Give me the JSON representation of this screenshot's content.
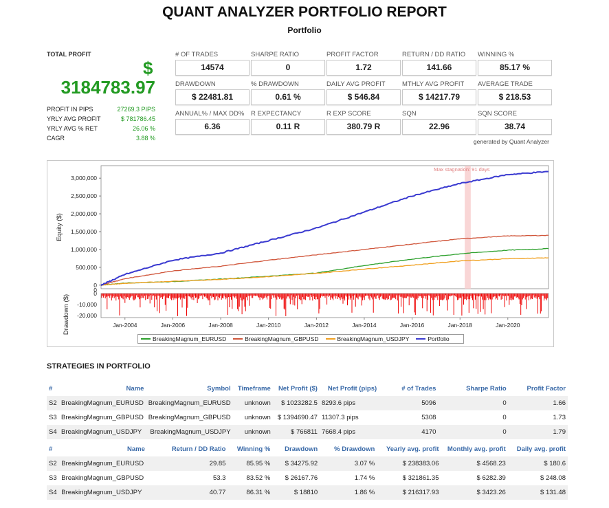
{
  "header": {
    "title": "QUANT ANALYZER PORTFOLIO REPORT",
    "subtitle": "Portfolio"
  },
  "summary": {
    "total_profit_label": "TOTAL PROFIT",
    "currency_symbol": "$",
    "total_profit_value": "3184783.97",
    "stats": [
      {
        "label": "PROFIT IN PIPS",
        "value": "27269.3 PIPS"
      },
      {
        "label": "YRLY AVG PROFIT",
        "value": "$ 781786.45"
      },
      {
        "label": "YRLY AVG % RET",
        "value": "26.06 %"
      },
      {
        "label": "CAGR",
        "value": "3.88 %"
      }
    ]
  },
  "metrics": [
    {
      "label": "# OF TRADES",
      "value": "14574"
    },
    {
      "label": "SHARPE RATIO",
      "value": "0"
    },
    {
      "label": "PROFIT FACTOR",
      "value": "1.72"
    },
    {
      "label": "RETURN / DD RATIO",
      "value": "141.66"
    },
    {
      "label": "WINNING %",
      "value": "85.17 %"
    },
    {
      "label": "DRAWDOWN",
      "value": "$ 22481.81"
    },
    {
      "label": "% DRAWDOWN",
      "value": "0.61 %"
    },
    {
      "label": "DAILY AVG PROFIT",
      "value": "$ 546.84"
    },
    {
      "label": "MTHLY AVG PROFIT",
      "value": "$ 14217.79"
    },
    {
      "label": "AVERAGE TRADE",
      "value": "$ 218.53"
    },
    {
      "label": "ANNUAL% / MAX DD%",
      "value": "6.36"
    },
    {
      "label": "R EXPECTANCY",
      "value": "0.11 R"
    },
    {
      "label": "R EXP SCORE",
      "value": "380.79 R"
    },
    {
      "label": "SQN",
      "value": "22.96"
    },
    {
      "label": "SQN SCORE",
      "value": "38.74"
    }
  ],
  "generated_by": "generated by Quant Analyzer",
  "chart_data": {
    "type": "line",
    "x_ticks": [
      "Jan-2004",
      "Jan-2006",
      "Jan-2008",
      "Jan-2010",
      "Jan-2012",
      "Jan-2014",
      "Jan-2016",
      "Jan-2018",
      "Jan-2020"
    ],
    "x_range": [
      2003.0,
      2021.7
    ],
    "ylabel": "Equity ($)",
    "y_ticks": [
      "3,000,000",
      "2,500,000",
      "2,000,000",
      "1,500,000",
      "1,000,000",
      "500,000",
      "0"
    ],
    "y_tick_values": [
      3000000,
      2500000,
      2000000,
      1500000,
      1000000,
      500000,
      0
    ],
    "ylim": [
      -100000,
      3350000
    ],
    "annotation": "Max stagnation: 91 days",
    "stagnation_band": [
      2018.2,
      2018.45
    ],
    "series": [
      {
        "name": "BreakingMagnum_EURUSD",
        "color": "#2ca02c",
        "x": [
          2003.0,
          2004,
          2006,
          2008,
          2010,
          2012,
          2014,
          2016,
          2018,
          2020,
          2021.7
        ],
        "y": [
          0,
          60000,
          100000,
          170000,
          250000,
          340000,
          550000,
          730000,
          880000,
          980000,
          1023000
        ]
      },
      {
        "name": "BreakingMagnum_GBPUSD",
        "color": "#d0553a",
        "x": [
          2003.0,
          2004,
          2006,
          2008,
          2010,
          2012,
          2014,
          2016,
          2018,
          2020,
          2021.7
        ],
        "y": [
          0,
          180000,
          400000,
          530000,
          700000,
          850000,
          1000000,
          1150000,
          1300000,
          1380000,
          1395000
        ]
      },
      {
        "name": "BreakingMagnum_USDJPY",
        "color": "#f0a020",
        "x": [
          2003.0,
          2004,
          2006,
          2008,
          2010,
          2012,
          2014,
          2016,
          2018,
          2020,
          2021.7
        ],
        "y": [
          0,
          50000,
          110000,
          160000,
          240000,
          330000,
          450000,
          560000,
          680000,
          740000,
          767000
        ]
      },
      {
        "name": "Portfolio",
        "color": "#3a3ad0",
        "x": [
          2003.0,
          2004,
          2006,
          2008,
          2010,
          2012,
          2014,
          2016,
          2018,
          2020,
          2021.7
        ],
        "y": [
          0,
          300000,
          700000,
          900000,
          1250000,
          1600000,
          2050000,
          2500000,
          2850000,
          3100000,
          3185000
        ]
      }
    ],
    "drawdown": {
      "ylabel": "Drawdown ($)",
      "y_ticks": [
        "0",
        "0",
        "-10,000",
        "-20,000"
      ],
      "y_tick_values": [
        0,
        0,
        -10000,
        -20000
      ],
      "ylim": [
        -22000,
        0
      ],
      "color": "#ee0000"
    }
  },
  "strategies": {
    "section_title": "STRATEGIES IN PORTFOLIO",
    "table1": {
      "headers": [
        "#",
        "Name",
        "Symbol",
        "Timeframe",
        "Net Profit ($)",
        "Net Profit (pips)",
        "# of Trades",
        "Sharpe Ratio",
        "Profit Factor"
      ],
      "rows": [
        [
          "S2",
          "BreakingMagnum_EURUSD",
          "BreakingMagnum_EURUSD",
          "unknown",
          "$ 1023282.5",
          "8293.6 pips",
          "5096",
          "0",
          "1.66"
        ],
        [
          "S3",
          "BreakingMagnum_GBPUSD",
          "BreakingMagnum_GBPUSD",
          "unknown",
          "$ 1394690.47",
          "11307.3 pips",
          "5308",
          "0",
          "1.73"
        ],
        [
          "S4",
          "BreakingMagnum_USDJPY",
          "BreakingMagnum_USDJPY",
          "unknown",
          "$ 766811",
          "7668.4 pips",
          "4170",
          "0",
          "1.79"
        ]
      ]
    },
    "table2": {
      "headers": [
        "#",
        "Name",
        "Return / DD Ratio",
        "Winning %",
        "Drawdown",
        "% Drawdown",
        "Yearly avg. profit",
        "Monthly avg. profit",
        "Daily avg. profit"
      ],
      "rows": [
        [
          "S2",
          "BreakingMagnum_EURUSD",
          "29.85",
          "85.95 %",
          "$ 34275.92",
          "3.07 %",
          "$ 238383.06",
          "$ 4568.23",
          "$ 180.6"
        ],
        [
          "S3",
          "BreakingMagnum_GBPUSD",
          "53.3",
          "83.52 %",
          "$ 26167.76",
          "1.74 %",
          "$ 321861.35",
          "$ 6282.39",
          "$ 248.08"
        ],
        [
          "S4",
          "BreakingMagnum_USDJPY",
          "40.77",
          "86.31 %",
          "$ 18810",
          "1.86 %",
          "$ 216317.93",
          "$ 3423.26",
          "$ 131.48"
        ]
      ]
    }
  }
}
